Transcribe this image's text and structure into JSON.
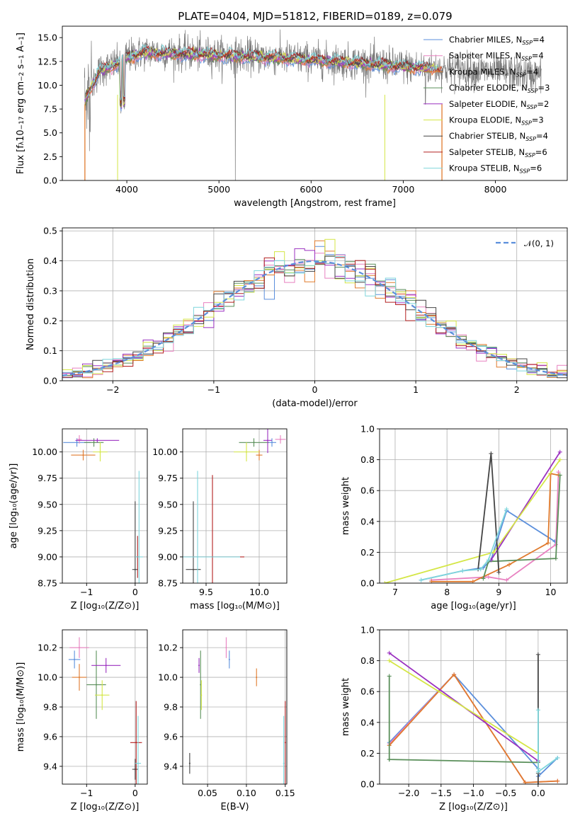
{
  "colors": {
    "c1": "#5b8fdc",
    "c2": "#e881c0",
    "c3": "#e07b2e",
    "c4": "#5a8f5a",
    "c5": "#9b30c0",
    "c6": "#d4e645",
    "c7": "#444444",
    "c8": "#b32020",
    "c9": "#7fd6dc",
    "gray": "#7a7a7a",
    "dash": "#5b8fdc"
  },
  "chart_data": [
    {
      "id": "spectrum",
      "type": "line",
      "title": "PLATE=0404, MJD=51812, FIBERID=0189, z=0.079",
      "xlabel": "wavelength [Angstrom, rest frame]",
      "ylabel": "Flux [f_λ10^-17 erg cm^-2 s^-1 A^-1]",
      "xlim": [
        3300,
        8780
      ],
      "ylim": [
        0,
        16.2
      ],
      "xticks": [
        "4000",
        "5000",
        "6000",
        "7000",
        "8000"
      ],
      "yticks": [
        "0.0",
        "2.5",
        "5.0",
        "7.5",
        "10.0",
        "12.5",
        "15.0"
      ],
      "legend_position": "right",
      "legend": [
        {
          "label": "Chabrier MILES, N",
          "sub": "SSP",
          "suffix": "=4",
          "color": "c1"
        },
        {
          "label": "Salpeter MILES, N",
          "sub": "SSP",
          "suffix": "=4",
          "color": "c2"
        },
        {
          "label": "Kroupa MILES, N",
          "sub": "SSP",
          "suffix": "=4",
          "color": "c3"
        },
        {
          "label": "Chabrier ELODIE, N",
          "sub": "SSP",
          "suffix": "=3",
          "color": "c4"
        },
        {
          "label": "Salpeter ELODIE, N",
          "sub": "SSP",
          "suffix": "=2",
          "color": "c5"
        },
        {
          "label": "Kroupa ELODIE, N",
          "sub": "SSP",
          "suffix": "=3",
          "color": "c6"
        },
        {
          "label": "Chabrier STELIB, N",
          "sub": "SSP",
          "suffix": "=4",
          "color": "c7"
        },
        {
          "label": "Salpeter STELIB, N",
          "sub": "SSP",
          "suffix": "=6",
          "color": "c8"
        },
        {
          "label": "Kroupa STELIB, N",
          "sub": "SSP",
          "suffix": "=6",
          "color": "c9"
        }
      ],
      "continuum": [
        [
          3550,
          8.5
        ],
        [
          3700,
          11.5
        ],
        [
          3900,
          12.3
        ],
        [
          4000,
          13.0
        ],
        [
          4200,
          13.5
        ],
        [
          4500,
          13.4
        ],
        [
          5000,
          13.2
        ],
        [
          5500,
          13.0
        ],
        [
          6000,
          12.7
        ],
        [
          6500,
          12.4
        ],
        [
          7000,
          12.0
        ],
        [
          7500,
          11.7
        ],
        [
          8000,
          11.4
        ],
        [
          8500,
          11.1
        ]
      ]
    },
    {
      "id": "residuals",
      "type": "histogram",
      "xlabel": "(data-model)/error",
      "ylabel": "Normed distribution",
      "xlim": [
        -2.5,
        2.5
      ],
      "ylim": [
        0,
        0.51
      ],
      "xticks": [
        "−2",
        "−1",
        "0",
        "1",
        "2"
      ],
      "yticks": [
        "0.0",
        "0.1",
        "0.2",
        "0.3",
        "0.4",
        "0.5"
      ],
      "legend": [
        {
          "label": "𝒩(0, 1)",
          "color": "dash",
          "style": "dashed"
        }
      ],
      "bin_width": 0.1
    },
    {
      "id": "age_vs_Z",
      "type": "scatter",
      "xlabel": "Z [log₁₀(Z/Z⊙)]",
      "ylabel": "age  [log₁₀(age/yr)]",
      "xlim": [
        -1.5,
        0.25
      ],
      "ylim": [
        8.75,
        10.22
      ],
      "xticks": [
        "−1",
        "0"
      ],
      "yticks": [
        "8.75",
        "9.00",
        "9.25",
        "9.50",
        "9.75",
        "10.00"
      ],
      "points": [
        {
          "c": "c1",
          "x": -1.2,
          "y": 10.09,
          "xe": 0.28,
          "ye": 0.04
        },
        {
          "c": "c2",
          "x": -1.15,
          "y": 10.12,
          "xe": 0.05,
          "ye": 0.04
        },
        {
          "c": "c3",
          "x": -1.07,
          "y": 9.97,
          "xe": 0.25,
          "ye": 0.05
        },
        {
          "c": "c4",
          "x": -0.85,
          "y": 10.09,
          "xe": 0.2,
          "ye": 0.04
        },
        {
          "c": "c5",
          "x": -0.78,
          "y": 10.11,
          "xe": 0.45,
          "ye": 0.02
        },
        {
          "c": "c6",
          "x": -0.72,
          "y": 10.0,
          "xe": 0.15,
          "ye": 0.09
        },
        {
          "c": "c7",
          "x": 0.0,
          "y": 8.88,
          "xe": 0.06,
          "ye": 0.65
        },
        {
          "c": "c8",
          "x": 0.05,
          "y": 9.0,
          "xe": 0.04,
          "ye": 0.2
        },
        {
          "c": "c9",
          "x": 0.08,
          "y": 9.0,
          "xe": 0.08,
          "ye": 0.82
        }
      ]
    },
    {
      "id": "age_vs_mass",
      "type": "scatter",
      "xlabel": "mass [log₁₀(M/M⊙)]",
      "ylabel": "",
      "xlim": [
        9.28,
        10.26
      ],
      "ylim": [
        8.75,
        10.22
      ],
      "xticks": [
        "9.5",
        "10.0"
      ],
      "yticks": [
        "8.75",
        "9.00",
        "9.25",
        "9.50",
        "9.75",
        "10.00"
      ],
      "points": [
        {
          "c": "c1",
          "x": 10.12,
          "y": 10.09,
          "xe": 0.04,
          "ye": 0.04
        },
        {
          "c": "c2",
          "x": 10.2,
          "y": 10.12,
          "xe": 0.05,
          "ye": 0.04
        },
        {
          "c": "c3",
          "x": 10.0,
          "y": 9.97,
          "xe": 0.03,
          "ye": 0.05
        },
        {
          "c": "c4",
          "x": 9.95,
          "y": 10.09,
          "xe": 0.14,
          "ye": 0.04
        },
        {
          "c": "c5",
          "x": 10.08,
          "y": 10.11,
          "xe": 0.04,
          "ye": 0.12
        },
        {
          "c": "c6",
          "x": 9.88,
          "y": 10.0,
          "xe": 0.12,
          "ye": 0.09
        },
        {
          "c": "c7",
          "x": 9.38,
          "y": 8.88,
          "xe": 0.07,
          "ye": 0.65
        },
        {
          "c": "c8",
          "x": 9.56,
          "y": 9.0,
          "xe": 0.3,
          "ye": 0.78
        },
        {
          "c": "c9",
          "x": 9.42,
          "y": 9.0,
          "xe": 0.4,
          "ye": 0.82
        }
      ]
    },
    {
      "id": "weight_vs_age",
      "type": "line",
      "xlabel": "age  [log₁₀(age/yr)]",
      "ylabel": "mass weight",
      "xlim": [
        6.7,
        10.32
      ],
      "ylim": [
        0,
        1.0
      ],
      "xticks": [
        "7",
        "8",
        "9",
        "10"
      ],
      "yticks": [
        "0.0",
        "0.2",
        "0.4",
        "0.6",
        "0.8",
        "1.0"
      ],
      "series": [
        {
          "c": "c1",
          "x": [
            7.5,
            8.3,
            8.7,
            8.85,
            9.15,
            10.08
          ],
          "y": [
            0.02,
            0.08,
            0.1,
            0.15,
            0.47,
            0.27
          ]
        },
        {
          "c": "c2",
          "x": [
            7.7,
            8.8,
            9.15,
            10.1,
            10.15
          ],
          "y": [
            0.02,
            0.04,
            0.02,
            0.25,
            0.72
          ]
        },
        {
          "c": "c3",
          "x": [
            7.7,
            8.5,
            9.2,
            9.95,
            10.0,
            10.15
          ],
          "y": [
            0.01,
            0.01,
            0.12,
            0.26,
            0.71,
            0.7
          ]
        },
        {
          "c": "c4",
          "x": [
            8.7,
            8.8,
            10.1,
            10.18
          ],
          "y": [
            0.03,
            0.14,
            0.16,
            0.7
          ]
        },
        {
          "c": "c5",
          "x": [
            8.85,
            10.18
          ],
          "y": [
            0.15,
            0.85
          ]
        },
        {
          "c": "c6",
          "x": [
            6.8,
            8.9,
            10.18
          ],
          "y": [
            0.0,
            0.2,
            0.8
          ]
        },
        {
          "c": "c7",
          "x": [
            8.6,
            8.85,
            9.0
          ],
          "y": [
            0.09,
            0.84,
            0.07
          ]
        },
        {
          "c": "c9",
          "x": [
            7.5,
            8.3,
            8.65,
            8.8,
            9.15
          ],
          "y": [
            0.02,
            0.08,
            0.09,
            0.15,
            0.48
          ]
        }
      ]
    },
    {
      "id": "mass_vs_Z",
      "type": "scatter",
      "xlabel": "Z [log₁₀(Z/Z⊙)]",
      "ylabel": "mass [log₁₀(M/M⊙)]",
      "xlim": [
        -1.5,
        0.25
      ],
      "ylim": [
        9.28,
        10.32
      ],
      "xticks": [
        "−1",
        "0"
      ],
      "yticks": [
        "9.4",
        "9.6",
        "9.8",
        "10.0",
        "10.2"
      ],
      "points": [
        {
          "c": "c1",
          "x": -1.25,
          "y": 10.12,
          "xe": 0.12,
          "ye": 0.06
        },
        {
          "c": "c2",
          "x": -1.15,
          "y": 10.2,
          "xe": 0.2,
          "ye": 0.07
        },
        {
          "c": "c3",
          "x": -1.15,
          "y": 10.0,
          "xe": 0.15,
          "ye": 0.09
        },
        {
          "c": "c4",
          "x": -0.8,
          "y": 9.95,
          "xe": 0.2,
          "ye": 0.23
        },
        {
          "c": "c5",
          "x": -0.6,
          "y": 10.08,
          "xe": 0.3,
          "ye": 0.05
        },
        {
          "c": "c6",
          "x": -0.68,
          "y": 9.88,
          "xe": 0.15,
          "ye": 0.1
        },
        {
          "c": "c7",
          "x": 0.0,
          "y": 9.38,
          "xe": 0.06,
          "ye": 0.07
        },
        {
          "c": "c8",
          "x": 0.02,
          "y": 9.56,
          "xe": 0.12,
          "ye": 0.28
        },
        {
          "c": "c9",
          "x": 0.06,
          "y": 9.42,
          "xe": 0.06,
          "ye": 0.32
        }
      ]
    },
    {
      "id": "mass_vs_EBV",
      "type": "scatter",
      "xlabel": "E(B-V)",
      "ylabel": "",
      "xlim": [
        0.018,
        0.152
      ],
      "ylim": [
        9.28,
        10.32
      ],
      "xticks": [
        "0.05",
        "0.10",
        "0.15"
      ],
      "yticks": [
        "9.4",
        "9.6",
        "9.8",
        "10.0",
        "10.2"
      ],
      "points": [
        {
          "c": "c1",
          "x": 0.078,
          "y": 10.12,
          "xe": 0,
          "ye": 0.06
        },
        {
          "c": "c2",
          "x": 0.074,
          "y": 10.2,
          "xe": 0,
          "ye": 0.07
        },
        {
          "c": "c3",
          "x": 0.113,
          "y": 10.0,
          "xe": 0,
          "ye": 0.06
        },
        {
          "c": "c4",
          "x": 0.041,
          "y": 9.95,
          "xe": 0,
          "ye": 0.23
        },
        {
          "c": "c5",
          "x": 0.039,
          "y": 10.08,
          "xe": 0,
          "ye": 0.05
        },
        {
          "c": "c6",
          "x": 0.042,
          "y": 9.88,
          "xe": 0,
          "ye": 0.1
        },
        {
          "c": "c7",
          "x": 0.027,
          "y": 9.42,
          "xe": 0,
          "ye": 0.07
        },
        {
          "c": "c8",
          "x": 0.15,
          "y": 9.56,
          "xe": 0,
          "ye": 0.28
        },
        {
          "c": "c9",
          "x": 0.148,
          "y": 9.42,
          "xe": 0,
          "ye": 0.32
        }
      ]
    },
    {
      "id": "weight_vs_Z",
      "type": "line",
      "xlabel": "Z [log₁₀(Z/Z⊙)]",
      "ylabel": "mass weight",
      "xlim": [
        -2.45,
        0.45
      ],
      "ylim": [
        0,
        1.0
      ],
      "xticks": [
        "−2.0",
        "−1.5",
        "−1.0",
        "−0.5",
        "0.0"
      ],
      "yticks": [
        "0.0",
        "0.2",
        "0.4",
        "0.6",
        "0.8",
        "1.0"
      ],
      "series": [
        {
          "c": "c1",
          "x": [
            -2.3,
            -1.3,
            0.0,
            0.0,
            0.3
          ],
          "y": [
            0.27,
            0.71,
            0.1,
            0.05,
            0.17
          ]
        },
        {
          "c": "c2",
          "x": [
            -2.3,
            -1.3,
            -0.2,
            0.3
          ],
          "y": [
            0.26,
            0.71,
            0.01,
            0.02
          ]
        },
        {
          "c": "c3",
          "x": [
            -2.3,
            -1.3,
            -0.2,
            0.3
          ],
          "y": [
            0.25,
            0.71,
            0.01,
            0.02
          ]
        },
        {
          "c": "c4",
          "x": [
            -2.3,
            -2.3,
            -2.3,
            0.0
          ],
          "y": [
            0.7,
            0.16,
            0.16,
            0.14
          ]
        },
        {
          "c": "c5",
          "x": [
            -2.3,
            0.0
          ],
          "y": [
            0.85,
            0.15
          ]
        },
        {
          "c": "c6",
          "x": [
            -2.3,
            0.0
          ],
          "y": [
            0.8,
            0.2
          ]
        },
        {
          "c": "c7",
          "x": [
            0.0,
            0.0,
            0.0
          ],
          "y": [
            0.84,
            0.07,
            0.0
          ]
        },
        {
          "c": "c9",
          "x": [
            0.0,
            0.0,
            0.0,
            0.3
          ],
          "y": [
            0.48,
            0.1,
            0.08,
            0.17
          ]
        }
      ]
    }
  ]
}
